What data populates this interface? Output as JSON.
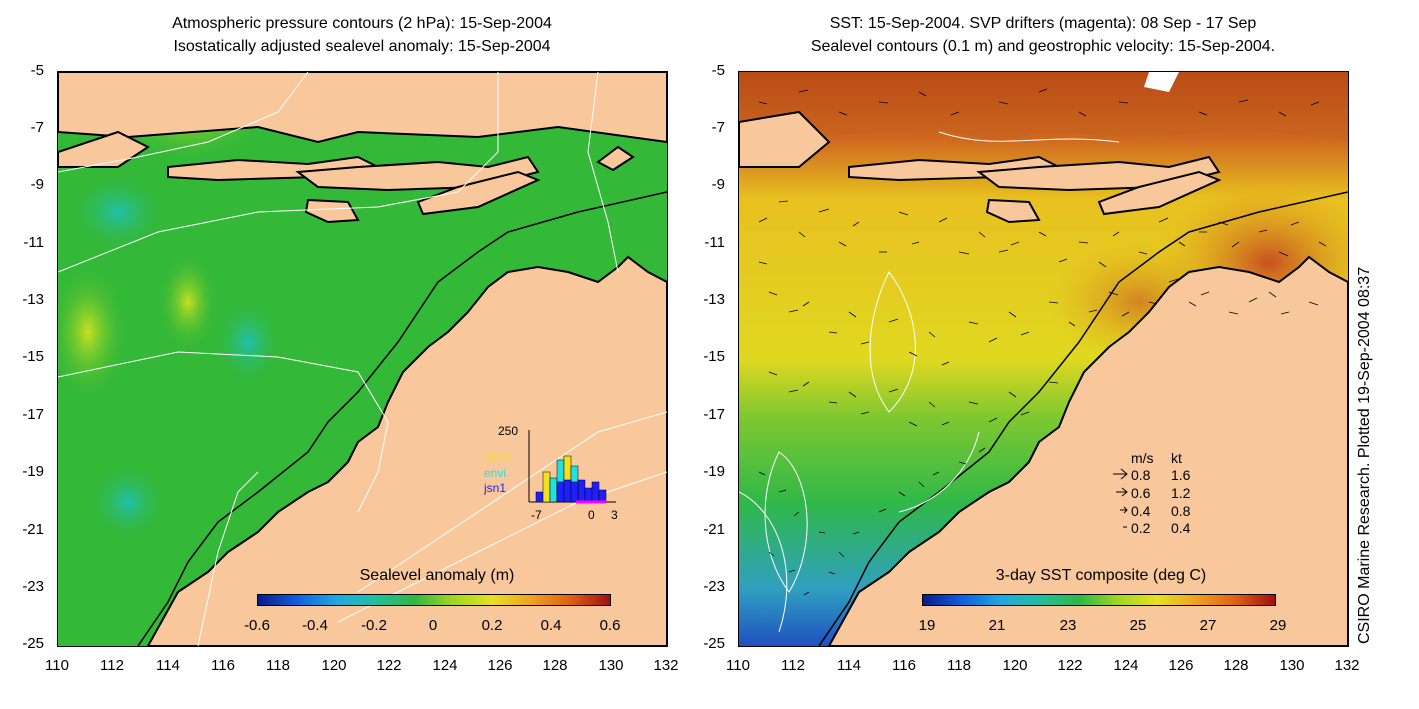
{
  "left_panel": {
    "title_line1": "Atmospheric pressure contours (2 hPa): 15-Sep-2004",
    "title_line2": "Isostatically adjusted sealevel anomaly: 15-Sep-2004",
    "colorbar_title": "Sealevel anomaly (m)",
    "colorbar_labels": [
      "-0.6",
      "-0.4",
      "-0.2",
      "0",
      "0.2",
      "0.4",
      "0.6"
    ],
    "histogram": {
      "ymax_label": "250",
      "xlabels": [
        "-7",
        "0",
        "3"
      ],
      "legend": [
        {
          "name": "GFO",
          "color": "#f0e020"
        },
        {
          "name": "envi",
          "color": "#20e0e0"
        },
        {
          "name": "jsn1",
          "color": "#2020ff"
        }
      ]
    }
  },
  "right_panel": {
    "title_line1": "SST: 15-Sep-2004. SVP drifters (magenta): 08 Sep - 17 Sep",
    "title_line2": "Sealevel contours (0.1 m) and geostrophic velocity: 15-Sep-2004.",
    "colorbar_title": "3-day SST composite (deg C)",
    "colorbar_labels": [
      "19",
      "21",
      "23",
      "25",
      "27",
      "29"
    ],
    "velocity_key": {
      "header_ms": "m/s",
      "header_kt": "kt",
      "rows": [
        {
          "ms": "0.8",
          "kt": "1.6"
        },
        {
          "ms": "0.6",
          "kt": "1.2"
        },
        {
          "ms": "0.4",
          "kt": "0.8"
        },
        {
          "ms": "0.2",
          "kt": "0.4"
        }
      ]
    }
  },
  "axes": {
    "y_labels": [
      "-5",
      "-7",
      "-9",
      "-11",
      "-13",
      "-15",
      "-17",
      "-19",
      "-21",
      "-23",
      "-25"
    ],
    "x_labels": [
      "110",
      "112",
      "114",
      "116",
      "118",
      "120",
      "122",
      "124",
      "126",
      "128",
      "130",
      "132"
    ]
  },
  "credit": "CSIRO Marine Research. Plotted 19-Sep-2004 08:37",
  "colors": {
    "land": "#f8c89c",
    "sla_ocean": "#34b838",
    "sst_warm": "#d86a20",
    "sst_mid": "#e6d020",
    "sst_cool": "#30b848"
  }
}
